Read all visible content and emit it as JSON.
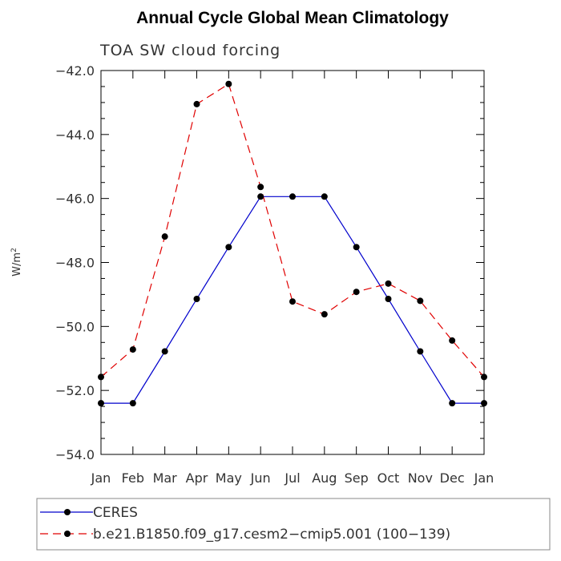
{
  "chart_data": {
    "type": "line",
    "title": "Annual Cycle Global Mean Climatology",
    "subtitle": "TOA SW cloud forcing",
    "ylabel": "W/m",
    "ylabel_sup": "2",
    "xlabel": "",
    "categories": [
      "Jan",
      "Feb",
      "Mar",
      "Apr",
      "May",
      "Jun",
      "Jul",
      "Aug",
      "Sep",
      "Oct",
      "Nov",
      "Dec",
      "Jan"
    ],
    "ylim": [
      -54.0,
      -42.0
    ],
    "yticks": [
      "-42.0",
      "-44.0",
      "-46.0",
      "-48.0",
      "-50.0",
      "-52.0",
      "-54.0"
    ],
    "grid": false,
    "legend_position": "bottom",
    "series": [
      {
        "name": "CERES",
        "color": "#0000cc",
        "dash": "solid",
        "values": [
          -52.4,
          -52.4,
          -50.78,
          -49.14,
          -47.52,
          -45.94,
          -45.94,
          -45.94,
          -47.52,
          -49.14,
          -50.78,
          -52.4,
          -52.4
        ]
      },
      {
        "name": "b.e21.B1850.f09_g17.cesm2−cmip5.001 (100−139)",
        "color": "#e00000",
        "dash": "dashed",
        "values": [
          -51.58,
          -50.72,
          -47.19,
          -43.05,
          -42.42,
          -45.64,
          -49.22,
          -49.62,
          -48.92,
          -48.66,
          -49.2,
          -50.44,
          -51.58
        ]
      }
    ]
  }
}
